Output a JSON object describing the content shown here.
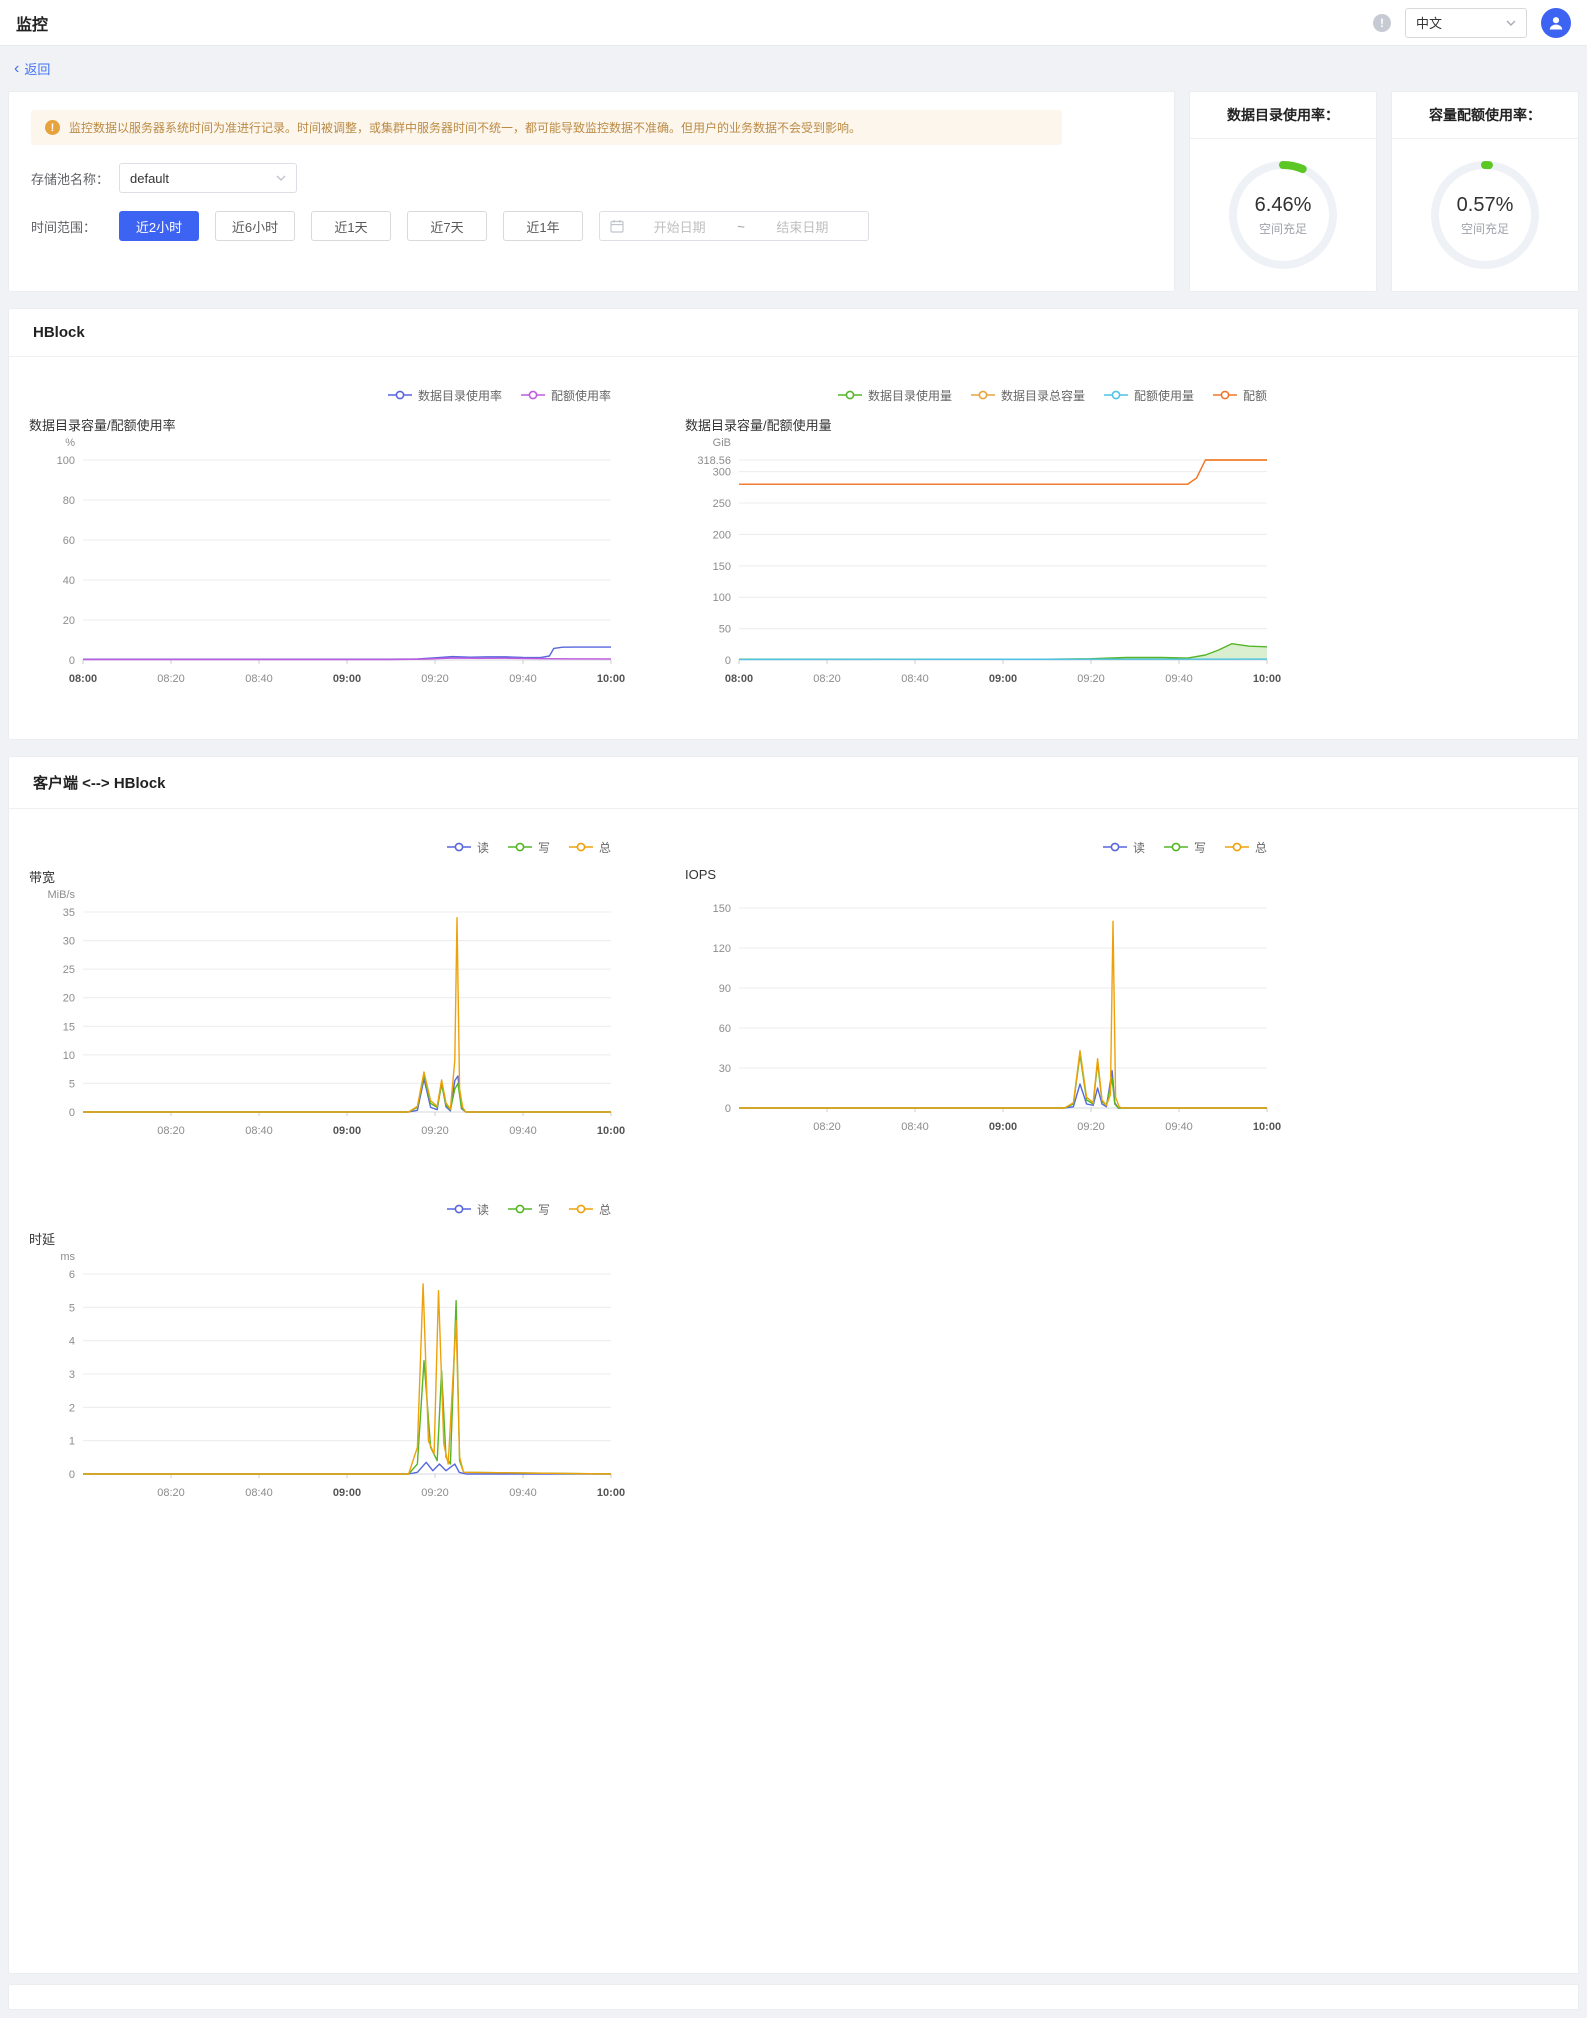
{
  "colors": {
    "accent": "#3D63F2",
    "link": "#4270F5",
    "gauge_ok": "#5AC725",
    "warning_bg": "#fdf6ec",
    "warning_icon": "#e6a23c"
  },
  "header": {
    "title": "监控",
    "language": "中文"
  },
  "back": {
    "label": "返回"
  },
  "filters": {
    "notice": "监控数据以服务器系统时间为准进行记录。时间被调整，或集群中服务器时间不统一，都可能导致监控数据不准确。但用户的业务数据不会受到影响。",
    "pool_label": "存储池名称：",
    "pool_value": "default",
    "time_label": "时间范围：",
    "time_buttons": [
      "近2小时",
      "近6小时",
      "近1天",
      "近7天",
      "近1年"
    ],
    "active_time_button": "近2小时",
    "date_start_placeholder": "开始日期",
    "date_separator": "~",
    "date_end_placeholder": "结束日期"
  },
  "gauges": [
    {
      "title": "数据目录使用率：",
      "value": "6.46%",
      "status": "空间充足",
      "percent": 6.46
    },
    {
      "title": "容量配额使用率：",
      "value": "0.57%",
      "status": "空间充足",
      "percent": 0.57
    }
  ],
  "sections": [
    {
      "title": "HBlock"
    },
    {
      "title": "客户端 <--> HBlock"
    }
  ],
  "chart_data": [
    {
      "id": "usage_rate",
      "type": "line",
      "title": "数据目录容量/配额使用率",
      "unit": "%",
      "xrange": [
        0,
        120
      ],
      "xticks": [
        {
          "t": 0,
          "label": "08:00",
          "bold": true
        },
        {
          "t": 20,
          "label": "08:20",
          "bold": false
        },
        {
          "t": 40,
          "label": "08:40",
          "bold": false
        },
        {
          "t": 60,
          "label": "09:00",
          "bold": true
        },
        {
          "t": 80,
          "label": "09:20",
          "bold": false
        },
        {
          "t": 100,
          "label": "09:40",
          "bold": false
        },
        {
          "t": 120,
          "label": "10:00",
          "bold": true
        }
      ],
      "ylim": [
        0,
        100
      ],
      "yticks": [
        0,
        20,
        40,
        60,
        80,
        100
      ],
      "legend": [
        {
          "name": "数据目录使用率",
          "color": "#5867DD"
        },
        {
          "name": "配额使用率",
          "color": "#BF5BE0"
        }
      ],
      "series": [
        {
          "name": "数据目录使用率",
          "color": "#5867DD",
          "points": [
            [
              0,
              0.4
            ],
            [
              70,
              0.4
            ],
            [
              76,
              0.5
            ],
            [
              80,
              1.1
            ],
            [
              84,
              1.7
            ],
            [
              88,
              1.4
            ],
            [
              92,
              1.6
            ],
            [
              96,
              1.6
            ],
            [
              100,
              1.3
            ],
            [
              104,
              1.2
            ],
            [
              106,
              2.0
            ],
            [
              107,
              5.8
            ],
            [
              109,
              6.4
            ],
            [
              112,
              6.46
            ],
            [
              120,
              6.46
            ]
          ]
        },
        {
          "name": "配额使用率",
          "color": "#BF5BE0",
          "points": [
            [
              0,
              0.25
            ],
            [
              70,
              0.25
            ],
            [
              78,
              0.5
            ],
            [
              84,
              1.0
            ],
            [
              90,
              0.85
            ],
            [
              96,
              0.9
            ],
            [
              102,
              0.7
            ],
            [
              110,
              0.6
            ],
            [
              120,
              0.57
            ]
          ]
        }
      ]
    },
    {
      "id": "usage_amount",
      "type": "line",
      "title": "数据目录容量/配额使用量",
      "unit": "GiB",
      "xrange": [
        0,
        120
      ],
      "xticks": [
        {
          "t": 0,
          "label": "08:00",
          "bold": true
        },
        {
          "t": 20,
          "label": "08:20",
          "bold": false
        },
        {
          "t": 40,
          "label": "08:40",
          "bold": false
        },
        {
          "t": 60,
          "label": "09:00",
          "bold": true
        },
        {
          "t": 80,
          "label": "09:20",
          "bold": false
        },
        {
          "t": 100,
          "label": "09:40",
          "bold": false
        },
        {
          "t": 120,
          "label": "10:00",
          "bold": true
        }
      ],
      "ylim": [
        0,
        318.56
      ],
      "yticks": [
        0,
        50,
        100,
        150,
        200,
        250,
        300,
        318.56
      ],
      "legend": [
        {
          "name": "数据目录使用量",
          "color": "#55B527"
        },
        {
          "name": "数据目录总容量",
          "color": "#E8A33D"
        },
        {
          "name": "配额使用量",
          "color": "#4FC3E8"
        },
        {
          "name": "配额",
          "color": "#F2772C"
        }
      ],
      "series": [
        {
          "name": "数据目录使用量",
          "color": "#55B527",
          "area": true,
          "points": [
            [
              0,
              1.2
            ],
            [
              70,
              1.2
            ],
            [
              80,
              2
            ],
            [
              88,
              4
            ],
            [
              96,
              4
            ],
            [
              102,
              3
            ],
            [
              106,
              8
            ],
            [
              109,
              16
            ],
            [
              112,
              26
            ],
            [
              116,
              22
            ],
            [
              120,
              21
            ]
          ]
        },
        {
          "name": "配额使用量",
          "color": "#4FC3E8",
          "points": [
            [
              0,
              1
            ],
            [
              120,
              1.5
            ]
          ]
        },
        {
          "name": "数据目录总容量",
          "color": "#E8A33D",
          "points": [
            [
              0,
              280
            ],
            [
              102,
              280
            ],
            [
              104,
              290
            ],
            [
              106,
              318.56
            ],
            [
              120,
              318.56
            ]
          ]
        },
        {
          "name": "配额",
          "color": "#F2772C",
          "points": [
            [
              0,
              280
            ],
            [
              102,
              280
            ],
            [
              104,
              290
            ],
            [
              106,
              318.56
            ],
            [
              120,
              318.56
            ]
          ]
        }
      ]
    },
    {
      "id": "bandwidth",
      "type": "line",
      "title": "带宽",
      "unit": "MiB/s",
      "xrange": [
        0,
        120
      ],
      "xticks": [
        {
          "t": 20,
          "label": "08:20",
          "bold": false
        },
        {
          "t": 40,
          "label": "08:40",
          "bold": false
        },
        {
          "t": 60,
          "label": "09:00",
          "bold": true
        },
        {
          "t": 80,
          "label": "09:20",
          "bold": false
        },
        {
          "t": 100,
          "label": "09:40",
          "bold": false
        },
        {
          "t": 120,
          "label": "10:00",
          "bold": true
        }
      ],
      "ylim": [
        0,
        35
      ],
      "yticks": [
        0,
        5,
        10,
        15,
        20,
        25,
        30,
        35
      ],
      "legend": [
        {
          "name": "读",
          "color": "#5867DD"
        },
        {
          "name": "写",
          "color": "#55B527"
        },
        {
          "name": "总",
          "color": "#EDA20C"
        }
      ],
      "series": [
        {
          "name": "读",
          "color": "#5867DD",
          "points": [
            [
              0,
              0
            ],
            [
              74,
              0
            ],
            [
              76,
              0.3
            ],
            [
              77.5,
              5.8
            ],
            [
              79,
              0.8
            ],
            [
              80.5,
              0.4
            ],
            [
              81.5,
              5.2
            ],
            [
              82.5,
              0.9
            ],
            [
              83.5,
              0.2
            ],
            [
              84.5,
              5.5
            ],
            [
              85.2,
              6.3
            ],
            [
              86,
              0.6
            ],
            [
              87,
              0
            ],
            [
              120,
              0
            ]
          ]
        },
        {
          "name": "写",
          "color": "#55B527",
          "points": [
            [
              0,
              0
            ],
            [
              74,
              0
            ],
            [
              76,
              0.8
            ],
            [
              77.5,
              6.5
            ],
            [
              79,
              1.5
            ],
            [
              80.5,
              0.8
            ],
            [
              81.5,
              4.8
            ],
            [
              82.5,
              1.2
            ],
            [
              83.5,
              0.4
            ],
            [
              84.5,
              4
            ],
            [
              85.2,
              5
            ],
            [
              86,
              0.8
            ],
            [
              87,
              0
            ],
            [
              120,
              0
            ]
          ]
        },
        {
          "name": "总",
          "color": "#EDA20C",
          "points": [
            [
              0,
              0
            ],
            [
              74,
              0
            ],
            [
              76,
              1
            ],
            [
              77.5,
              7
            ],
            [
              79,
              2
            ],
            [
              80.5,
              1
            ],
            [
              81.5,
              5.6
            ],
            [
              82.5,
              1.6
            ],
            [
              83.5,
              0.5
            ],
            [
              84.5,
              9
            ],
            [
              85,
              34
            ],
            [
              85.6,
              4
            ],
            [
              86.3,
              0.8
            ],
            [
              87,
              0
            ],
            [
              120,
              0
            ]
          ]
        }
      ]
    },
    {
      "id": "iops",
      "type": "line",
      "title": "IOPS",
      "unit": "",
      "xrange": [
        0,
        120
      ],
      "xticks": [
        {
          "t": 20,
          "label": "08:20",
          "bold": false
        },
        {
          "t": 40,
          "label": "08:40",
          "bold": false
        },
        {
          "t": 60,
          "label": "09:00",
          "bold": true
        },
        {
          "t": 80,
          "label": "09:20",
          "bold": false
        },
        {
          "t": 100,
          "label": "09:40",
          "bold": false
        },
        {
          "t": 120,
          "label": "10:00",
          "bold": true
        }
      ],
      "ylim": [
        0,
        150
      ],
      "yticks": [
        0,
        30,
        60,
        90,
        120,
        150
      ],
      "legend": [
        {
          "name": "读",
          "color": "#5867DD"
        },
        {
          "name": "写",
          "color": "#55B527"
        },
        {
          "name": "总",
          "color": "#EDA20C"
        }
      ],
      "series": [
        {
          "name": "读",
          "color": "#5867DD",
          "points": [
            [
              0,
              0
            ],
            [
              74,
              0
            ],
            [
              76,
              1
            ],
            [
              77.5,
              18
            ],
            [
              79,
              3
            ],
            [
              80.5,
              2
            ],
            [
              81.5,
              15
            ],
            [
              82.5,
              3
            ],
            [
              83.5,
              1
            ],
            [
              84.8,
              28
            ],
            [
              85.4,
              4
            ],
            [
              86.2,
              0
            ],
            [
              120,
              0
            ]
          ]
        },
        {
          "name": "写",
          "color": "#55B527",
          "points": [
            [
              0,
              0
            ],
            [
              74,
              0
            ],
            [
              76,
              3
            ],
            [
              77.5,
              40
            ],
            [
              79,
              6
            ],
            [
              80.5,
              3
            ],
            [
              81.5,
              34
            ],
            [
              82.5,
              5
            ],
            [
              83.5,
              2
            ],
            [
              84.8,
              22
            ],
            [
              85.4,
              3
            ],
            [
              86.2,
              0
            ],
            [
              120,
              0
            ]
          ]
        },
        {
          "name": "总",
          "color": "#EDA20C",
          "points": [
            [
              0,
              0
            ],
            [
              74,
              0
            ],
            [
              76,
              4
            ],
            [
              77.5,
              43
            ],
            [
              79,
              8
            ],
            [
              80.5,
              4
            ],
            [
              81.5,
              37
            ],
            [
              82.5,
              6
            ],
            [
              83.5,
              2
            ],
            [
              84.4,
              10
            ],
            [
              85,
              140
            ],
            [
              85.6,
              8
            ],
            [
              86.4,
              1
            ],
            [
              87,
              0
            ],
            [
              120,
              0
            ]
          ]
        }
      ]
    },
    {
      "id": "latency",
      "type": "line",
      "title": "时延",
      "unit": "ms",
      "xrange": [
        0,
        120
      ],
      "xticks": [
        {
          "t": 20,
          "label": "08:20",
          "bold": false
        },
        {
          "t": 40,
          "label": "08:40",
          "bold": false
        },
        {
          "t": 60,
          "label": "09:00",
          "bold": true
        },
        {
          "t": 80,
          "label": "09:20",
          "bold": false
        },
        {
          "t": 100,
          "label": "09:40",
          "bold": false
        },
        {
          "t": 120,
          "label": "10:00",
          "bold": true
        }
      ],
      "ylim": [
        0,
        6
      ],
      "yticks": [
        0,
        1,
        2,
        3,
        4,
        5,
        6
      ],
      "legend": [
        {
          "name": "读",
          "color": "#5867DD"
        },
        {
          "name": "写",
          "color": "#55B527"
        },
        {
          "name": "总",
          "color": "#EDA20C"
        }
      ],
      "series": [
        {
          "name": "读",
          "color": "#5867DD",
          "points": [
            [
              0,
              0
            ],
            [
              74,
              0
            ],
            [
              76,
              0.05
            ],
            [
              78,
              0.35
            ],
            [
              79.5,
              0.1
            ],
            [
              81,
              0.3
            ],
            [
              82.5,
              0.1
            ],
            [
              84.5,
              0.3
            ],
            [
              85.5,
              0.05
            ],
            [
              87,
              0
            ],
            [
              120,
              0
            ]
          ]
        },
        {
          "name": "写",
          "color": "#55B527",
          "points": [
            [
              0,
              0
            ],
            [
              74,
              0
            ],
            [
              76,
              0.3
            ],
            [
              77.5,
              3.4
            ],
            [
              79,
              0.8
            ],
            [
              80.5,
              0.4
            ],
            [
              81.5,
              3.1
            ],
            [
              82.5,
              0.5
            ],
            [
              83.5,
              0.3
            ],
            [
              84.8,
              5.2
            ],
            [
              85.6,
              0.4
            ],
            [
              86.5,
              0.05
            ],
            [
              120,
              0
            ]
          ]
        },
        {
          "name": "总",
          "color": "#EDA20C",
          "points": [
            [
              0,
              0
            ],
            [
              74,
              0
            ],
            [
              76,
              0.8
            ],
            [
              77.3,
              5.7
            ],
            [
              78.5,
              1.0
            ],
            [
              79.8,
              0.6
            ],
            [
              80.8,
              5.5
            ],
            [
              82,
              0.9
            ],
            [
              83,
              0.3
            ],
            [
              84.8,
              4.6
            ],
            [
              85.6,
              0.5
            ],
            [
              86.5,
              0.05
            ],
            [
              120,
              0
            ]
          ]
        }
      ]
    }
  ]
}
